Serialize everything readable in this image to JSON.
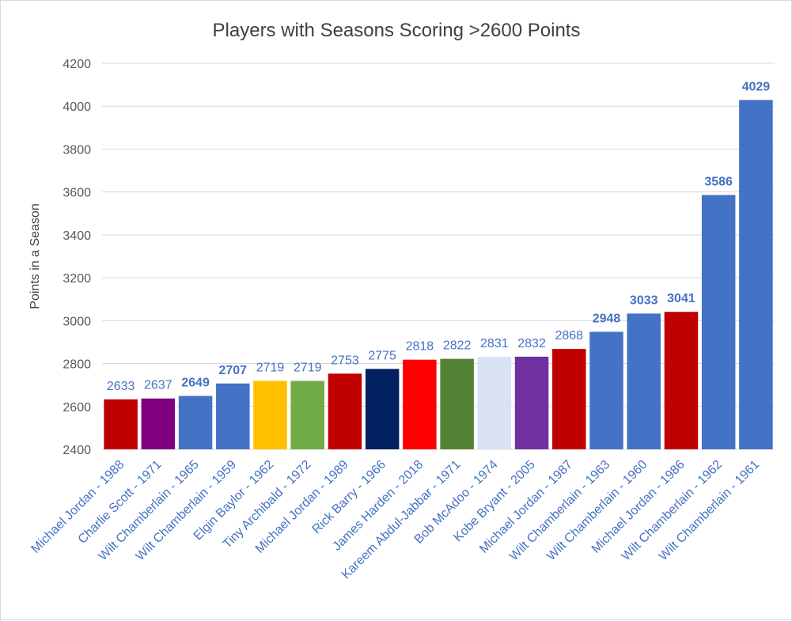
{
  "chart_data": {
    "type": "bar",
    "title": "Players with Seasons Scoring >2600 Points",
    "xlabel": "",
    "ylabel": "Points in a Season",
    "ylim": [
      2400,
      4200
    ],
    "yticks": [
      2400,
      2600,
      2800,
      3000,
      3200,
      3400,
      3600,
      3800,
      4000,
      4200
    ],
    "grid": true,
    "legend": "none",
    "categories": [
      "Michael Jordan - 1988",
      "Charlie Scott - 1971",
      "Wilt Chamberlain - 1965",
      "Wilt Chamberlain - 1959",
      "Elgin Baylor - 1962",
      "Tiny Archibald - 1972",
      "Michael Jordan - 1989",
      "Rick Barry - 1966",
      "James Harden - 2018",
      "Kareem Abdul-Jabbar - 1971",
      "Bob McAdoo - 1974",
      "Kobe Bryant - 2005",
      "Michael Jordan - 1987",
      "Wilt Chamberlain - 1963",
      "Wilt Chamberlain - 1960",
      "Michael Jordan - 1986",
      "Wilt Chamberlain - 1962",
      "Wilt Chamberlain - 1961"
    ],
    "values": [
      2633,
      2637,
      2649,
      2707,
      2719,
      2719,
      2753,
      2775,
      2818,
      2822,
      2831,
      2832,
      2868,
      2948,
      3033,
      3041,
      3586,
      4029
    ],
    "colors": [
      "#c00000",
      "#800080",
      "#4472c4",
      "#4472c4",
      "#ffc000",
      "#70ad47",
      "#c00000",
      "#002060",
      "#ff0000",
      "#548235",
      "#dae3f3",
      "#7030a0",
      "#c00000",
      "#4472c4",
      "#4472c4",
      "#c00000",
      "#4472c4",
      "#4472c4"
    ],
    "bold_labels": [
      false,
      false,
      true,
      true,
      false,
      false,
      false,
      false,
      false,
      false,
      false,
      false,
      false,
      true,
      true,
      true,
      true,
      true
    ],
    "label_color": "#4472c4"
  }
}
